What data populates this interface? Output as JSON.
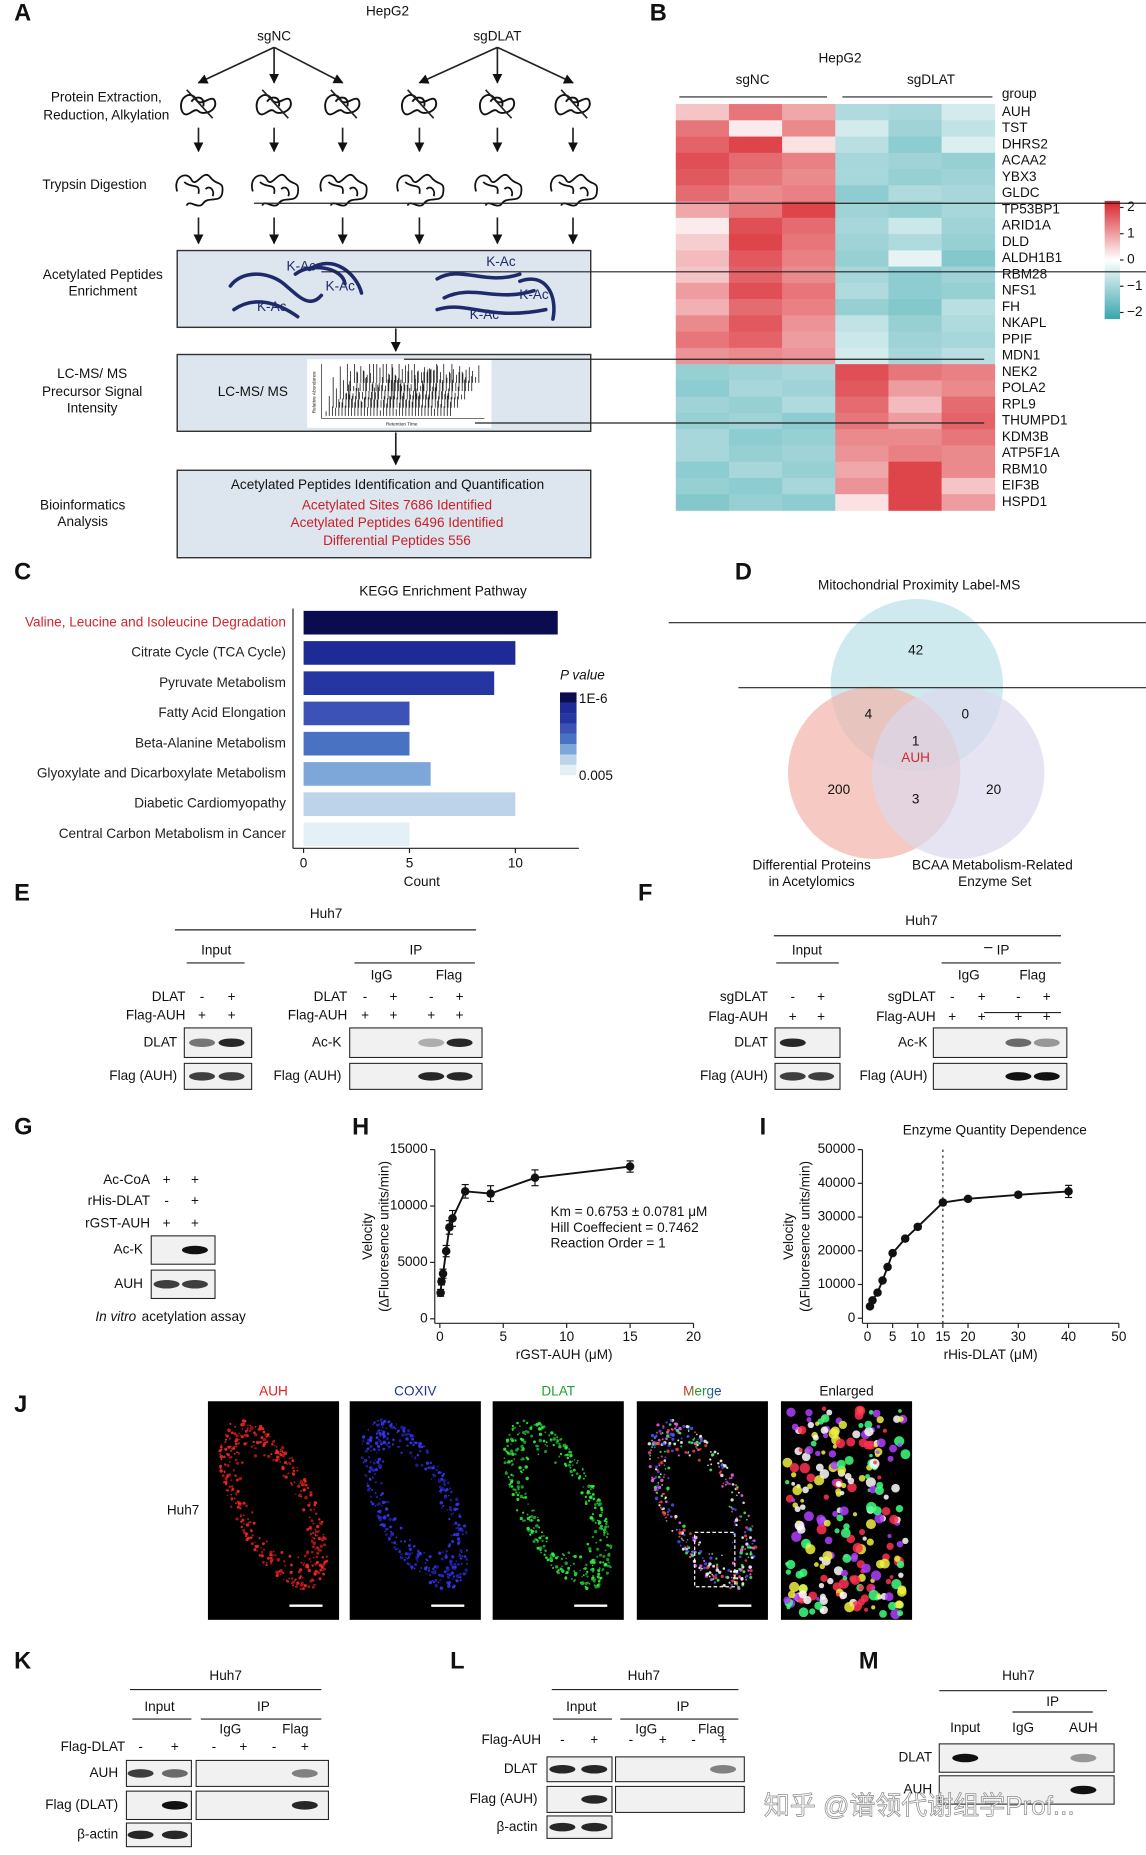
{
  "panel_letters": [
    "A",
    "B",
    "C",
    "D",
    "E",
    "F",
    "G",
    "H",
    "I",
    "J",
    "K",
    "L",
    "M"
  ],
  "panel_a": {
    "cell_line": "HepG2",
    "groups": [
      "sgNC",
      "sgDLAT"
    ],
    "steps": [
      [
        "Protein Extraction,",
        "Reduction, Alkylation"
      ],
      [
        "Trypsin Digestion"
      ],
      [
        "Acetylated Peptides",
        "Enrichment"
      ],
      [
        "LC-MS/ MS",
        "Precursor Signal",
        "Intensity"
      ],
      [
        "Bioinformatics",
        "Analysis"
      ]
    ],
    "kac_labels": [
      "K-Ac",
      "K-Ac",
      "K-Ac",
      "K-Ac",
      "K-Ac",
      "K-Ac"
    ],
    "ms_label": "LC-MS/ MS",
    "ms_axis": [
      "Relative Abundance",
      "Retention Time"
    ],
    "result_title": "Acetylated Peptides Identification and Quantification",
    "results": [
      "Acetylated Sites 7686 Identified",
      "Acetylated Peptides 6496 Identified",
      "Differential Peptides 556"
    ]
  },
  "panel_d": {
    "sets": [
      [
        "Mitochondrial Proximity Label-MS"
      ],
      [
        "Differential Proteins",
        "in Acetylomics"
      ],
      [
        "BCAA Metabolism-Related",
        "Enzyme Set"
      ]
    ],
    "regions": {
      "mito_only": 42,
      "mito_diff": 4,
      "mito_bcaa": 0,
      "all": 1,
      "diff_only": 200,
      "diff_bcaa": 3,
      "bcaa_only": 20
    },
    "center_label": "AUH"
  },
  "panel_e": {
    "cell_line": "Huh7",
    "input_label": "Input",
    "ip_label": "IP",
    "ip_groups": [
      "IgG",
      "Flag"
    ],
    "input_rows": [
      {
        "label": "DLAT",
        "signs": [
          "-",
          "+"
        ]
      },
      {
        "label": "Flag-AUH",
        "signs": [
          "+",
          "+"
        ]
      }
    ],
    "ip_rows": [
      {
        "label": "DLAT",
        "signs": [
          "-",
          "+",
          "-",
          "+"
        ]
      },
      {
        "label": "Flag-AUH",
        "signs": [
          "+",
          "+",
          "+",
          "+"
        ]
      }
    ],
    "input_blots": [
      "DLAT",
      "Flag (AUH)"
    ],
    "ip_blots": [
      "Ac-K",
      "Flag (AUH)"
    ]
  },
  "panel_f": {
    "cell_line": "Huh7",
    "input_label": "Input",
    "ip_label": "IP",
    "ip_groups": [
      "IgG",
      "Flag"
    ],
    "input_rows": [
      {
        "label": "sgDLAT",
        "signs": [
          "-",
          "+"
        ]
      },
      {
        "label": "Flag-AUH",
        "signs": [
          "+",
          "+"
        ]
      }
    ],
    "ip_rows": [
      {
        "label": "sgDLAT",
        "signs": [
          "-",
          "+",
          "-",
          "+"
        ]
      },
      {
        "label": "Flag-AUH",
        "signs": [
          "+",
          "+",
          "+",
          "+"
        ]
      }
    ],
    "input_blots": [
      "DLAT",
      "Flag (AUH)"
    ],
    "ip_blots": [
      "Ac-K",
      "Flag (AUH)"
    ]
  },
  "panel_g": {
    "input_rows": [
      {
        "label": "Ac-CoA",
        "signs": [
          "+",
          "+"
        ]
      },
      {
        "label": "rHis-DLAT",
        "signs": [
          "-",
          "+"
        ]
      },
      {
        "label": "rGST-AUH",
        "signs": [
          "+",
          "+"
        ]
      }
    ],
    "input_blots": [
      "Ac-K",
      "AUH"
    ],
    "caption": [
      "In vitro",
      "acetylation assay"
    ]
  },
  "panel_j": {
    "cell_line": "Huh7",
    "channels": [
      "AUH",
      "COXIV",
      "DLAT",
      "Merge",
      "Enlarged"
    ]
  },
  "panel_k": {
    "cell_line": "Huh7",
    "input_label": "Input",
    "ip_label": "IP",
    "ip_groups": [
      "IgG",
      "Flag"
    ],
    "input_rows": [
      {
        "label": "Flag-DLAT",
        "signs": [
          "-",
          "+"
        ]
      }
    ],
    "ip_rows": [
      {
        "signs": [
          "-",
          "+",
          "-",
          "+"
        ]
      }
    ],
    "input_blots": [
      "AUH",
      "Flag (DLAT)",
      "β-actin"
    ]
  },
  "panel_l": {
    "cell_line": "Huh7",
    "input_label": "Input",
    "ip_label": "IP",
    "ip_groups": [
      "IgG",
      "Flag"
    ],
    "input_rows": [
      {
        "label": "Flag-AUH",
        "signs": [
          "-",
          "+"
        ]
      }
    ],
    "ip_rows": [
      {
        "signs": [
          "-",
          "+",
          "-",
          "+"
        ]
      }
    ],
    "input_blots": [
      "DLAT",
      "Flag (AUH)",
      "β-actin"
    ]
  },
  "panel_m": {
    "cell_line": "Huh7",
    "ip_label": "IP",
    "columns": [
      "Input",
      "IgG",
      "AUH"
    ],
    "blots": [
      "DLAT",
      "AUH"
    ]
  },
  "watermark": "知乎 @谱领代谢组学Prof...",
  "chart_data": [
    {
      "type": "heatmap",
      "title": "HepG2",
      "column_groups": [
        "sgNC",
        "sgDLAT"
      ],
      "group_label": "group",
      "rows": [
        "AUH",
        "TST",
        "DHRS2",
        "ACAA2",
        "YBX3",
        "GLDC",
        "TP53BP1",
        "ARID1A",
        "DLD",
        "ALDH1B1",
        "RBM28",
        "NFS1",
        "FH",
        "NKAPL",
        "PPIF",
        "MDN1",
        "NEK2",
        "POLA2",
        "RPL9",
        "THUMPD1",
        "KDM3B",
        "ATP5F1A",
        "RBM10",
        "EIF3B",
        "HSPD1"
      ],
      "values": [
        [
          0.6,
          1.4,
          0.9,
          -0.9,
          -1.0,
          -0.5
        ],
        [
          1.4,
          0.2,
          1.2,
          -0.5,
          -1.1,
          -0.7
        ],
        [
          1.6,
          1.9,
          0.3,
          -0.8,
          -1.3,
          -0.4
        ],
        [
          1.8,
          1.5,
          1.3,
          -1.0,
          -1.1,
          -1.2
        ],
        [
          1.7,
          1.4,
          1.2,
          -1.0,
          -1.2,
          -1.1
        ],
        [
          1.5,
          1.2,
          1.3,
          -1.3,
          -0.9,
          -1.0
        ],
        [
          0.9,
          1.4,
          1.9,
          -1.1,
          -1.2,
          -1.0
        ],
        [
          0.2,
          1.8,
          1.5,
          -1.0,
          -0.6,
          -1.1
        ],
        [
          0.5,
          1.9,
          1.4,
          -1.1,
          -0.9,
          -1.2
        ],
        [
          0.7,
          1.7,
          1.3,
          -1.2,
          -0.3,
          -1.4
        ],
        [
          0.6,
          1.6,
          1.2,
          -1.0,
          -1.3,
          -1.1
        ],
        [
          1.0,
          1.8,
          1.4,
          -0.9,
          -1.3,
          -1.2
        ],
        [
          0.8,
          1.5,
          1.3,
          -1.2,
          -1.4,
          -0.8
        ],
        [
          1.2,
          1.7,
          1.1,
          -0.7,
          -1.2,
          -0.9
        ],
        [
          1.4,
          1.6,
          1.0,
          -0.6,
          -1.1,
          -1.0
        ],
        [
          1.1,
          1.2,
          1.1,
          -0.5,
          -1.0,
          -0.8
        ],
        [
          -1.2,
          -1.1,
          -1.0,
          1.8,
          1.4,
          1.3
        ],
        [
          -1.3,
          -1.0,
          -1.1,
          1.7,
          1.0,
          1.2
        ],
        [
          -1.1,
          -1.2,
          -0.9,
          1.5,
          0.7,
          1.5
        ],
        [
          -1.2,
          -1.1,
          -1.3,
          1.4,
          1.0,
          1.6
        ],
        [
          -1.0,
          -1.3,
          -1.2,
          1.2,
          1.2,
          1.4
        ],
        [
          -1.0,
          -1.2,
          -1.1,
          1.1,
          1.3,
          1.2
        ],
        [
          -1.3,
          -1.0,
          -1.2,
          0.9,
          1.9,
          1.2
        ],
        [
          -1.2,
          -1.3,
          -1.0,
          1.1,
          1.9,
          0.6
        ],
        [
          -1.4,
          -1.2,
          -1.3,
          0.3,
          1.9,
          1.0
        ]
      ],
      "zlim": [
        -2.25,
        2.25
      ],
      "colorbar_ticks": [
        2,
        1,
        0,
        {
          "value": -1,
          "label": "−1"
        },
        {
          "value": -2,
          "label": "−2"
        }
      ],
      "colors": [
        "#3aa6ad",
        "#ffffff",
        "#d7232a"
      ]
    },
    {
      "type": "barh",
      "title": "KEGG Enrichment Pathway",
      "categories": [
        "Valine, Leucine and Isoleucine Degradation",
        "Citrate Cycle (TCA Cycle)",
        "Pyruvate Metabolism",
        "Fatty Acid Elongation",
        "Beta-Alanine Metabolism",
        "Glyoxylate and Dicarboxylate Metabolism",
        "Diabetic Cardiomyopathy",
        "Central Carbon Metabolism in Cancer"
      ],
      "values": [
        12,
        10,
        9,
        5,
        5,
        6,
        10,
        5
      ],
      "colors": [
        "#0b0c4f",
        "#1e2b96",
        "#2535a2",
        "#3d52b6",
        "#4a72c2",
        "#7da7d9",
        "#bcd3ea",
        "#e3f1f6"
      ],
      "label_colors": [
        "#d0262b",
        "#222222",
        "#222222",
        "#222222",
        "#222222",
        "#222222",
        "#222222",
        "#222222"
      ],
      "xlabel": "Count",
      "xlim": [
        -0.5,
        13
      ],
      "xticks": [
        0,
        5,
        10
      ],
      "legend_title": "P value",
      "legend_labels": [
        "1E-6",
        "0.005"
      ]
    },
    {
      "type": "scatter",
      "xlabel": "rGST-AUH (μM)",
      "ylabel": [
        "Velocity",
        "(ΔFluoresence units/min)"
      ],
      "annotations": [
        "Km = 0.6753 ± 0.0781 μM",
        "Hill Coeffecient = 0.7462",
        "Reaction Order = 1"
      ],
      "x": [
        0.06,
        0.13,
        0.25,
        0.5,
        0.75,
        1,
        2,
        4,
        7.5,
        15
      ],
      "series": [
        {
          "values": [
            2300,
            3300,
            4000,
            6000,
            8100,
            8900,
            11300,
            11100,
            12500,
            13500
          ],
          "errors": [
            300,
            300,
            400,
            500,
            600,
            700,
            600,
            700,
            700,
            500
          ],
          "color": "#111111"
        }
      ],
      "xlim": [
        -0.4,
        20
      ],
      "ylim": [
        -400,
        15000
      ],
      "xticks": [
        0,
        5,
        10,
        15,
        20
      ],
      "yticks": [
        0,
        5000,
        10000,
        15000
      ]
    },
    {
      "type": "scatter",
      "title": "Enzyme Quantity Dependence",
      "xlabel": "rHis-DLAT (μM)",
      "ylabel": [
        "Velocity",
        "(ΔFluoresence units/min)"
      ],
      "x": [
        0.5,
        1,
        2,
        3,
        4,
        5,
        7.5,
        10,
        15,
        20,
        30,
        40
      ],
      "series": [
        {
          "values": [
            3500,
            5300,
            7600,
            11200,
            15200,
            19300,
            23600,
            27100,
            34300,
            35400,
            36600,
            37600
          ],
          "errors": [
            300,
            300,
            400,
            500,
            500,
            500,
            600,
            700,
            700,
            600,
            700,
            1800
          ],
          "color": "#111111"
        }
      ],
      "xlim": [
        -1,
        50
      ],
      "ylim": [
        -1500,
        50000
      ],
      "xticks": [
        0,
        5,
        10,
        15,
        20,
        30,
        40,
        50
      ],
      "yticks": [
        0,
        10000,
        20000,
        30000,
        40000,
        50000
      ],
      "vline": 15
    }
  ]
}
